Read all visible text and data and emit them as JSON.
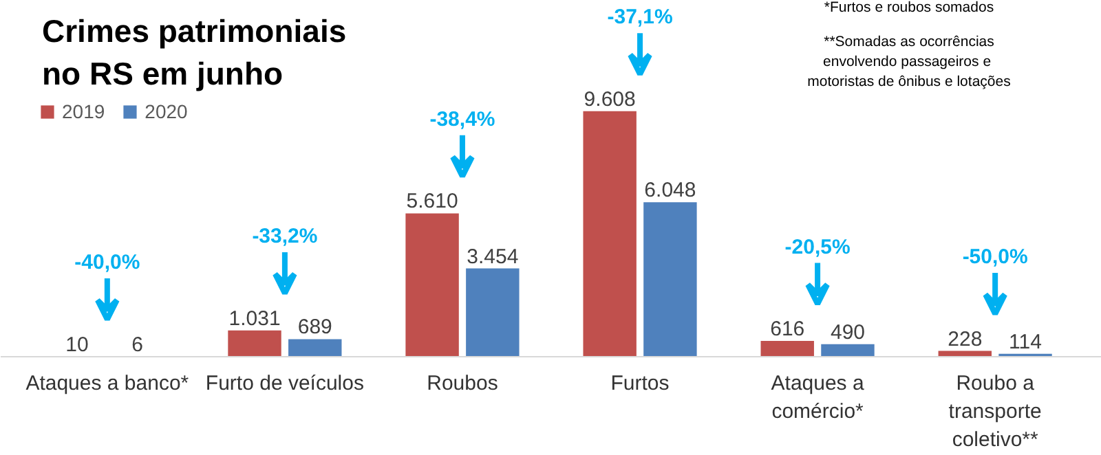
{
  "chart_data": {
    "type": "bar",
    "title": "Crimes patrimoniais\nno RS em junho",
    "categories": [
      "Ataques a banco*",
      "Furto de veículos",
      "Roubos",
      "Furtos",
      "Ataques a\ncomércio*",
      "Roubo a\ntransporte\ncoletivo**"
    ],
    "series": [
      {
        "name": "2019",
        "color": "#c0504d",
        "values": [
          10,
          1031,
          5610,
          9608,
          616,
          228
        ],
        "value_labels": [
          "10",
          "1.031",
          "5.610",
          "9.608",
          "616",
          "228"
        ]
      },
      {
        "name": "2020",
        "color": "#4f81bd",
        "values": [
          6,
          689,
          3454,
          6048,
          490,
          114
        ],
        "value_labels": [
          "6",
          "689",
          "3.454",
          "6.048",
          "490",
          "114"
        ]
      }
    ],
    "legend": "top left",
    "annotations": [
      "-40,0%",
      "-33,2%",
      "-38,4%",
      "-37,1%",
      "-20,5%",
      "-50,0%",
      "*Furtos e roubos somados",
      "**Somadas as ocorrências\nenvolvendo  passageiros e\nmotoristas de ônibus e lotações"
    ]
  }
}
